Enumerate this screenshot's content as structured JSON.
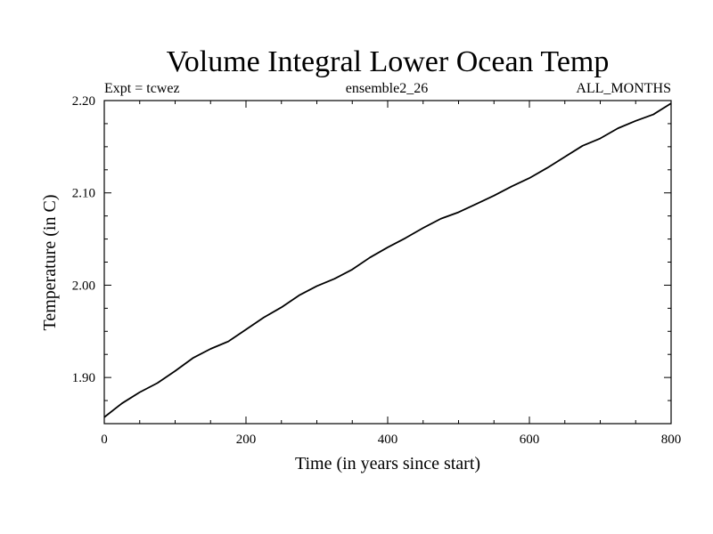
{
  "chart_data": {
    "type": "line",
    "title": "Volume Integral Lower Ocean Temp",
    "left_label": "Expt = tcwez",
    "center_label": "ensemble2_26",
    "right_label": "ALL_MONTHS",
    "xlabel": "Time (in years since start)",
    "ylabel": "Temperature (in C)",
    "xlim": [
      0,
      800
    ],
    "ylim": [
      1.85,
      2.2
    ],
    "x_ticks": [
      0,
      200,
      400,
      600,
      800
    ],
    "x_tick_labels": [
      "0",
      "200",
      "400",
      "600",
      "800"
    ],
    "y_ticks": [
      1.9,
      2.0,
      2.1,
      2.2
    ],
    "y_tick_labels": [
      "1.90",
      "2.00",
      "2.10",
      "2.20"
    ],
    "grid": false,
    "series": [
      {
        "name": "Temperature",
        "color": "#000000",
        "x": [
          0,
          25,
          50,
          75,
          100,
          125,
          150,
          175,
          200,
          225,
          250,
          275,
          300,
          325,
          350,
          375,
          400,
          425,
          450,
          475,
          500,
          525,
          550,
          575,
          600,
          625,
          650,
          675,
          700,
          725,
          750,
          775,
          800
        ],
        "values": [
          1.857,
          1.872,
          1.884,
          1.894,
          1.907,
          1.921,
          1.931,
          1.939,
          1.952,
          1.965,
          1.976,
          1.989,
          1.999,
          2.007,
          2.017,
          2.03,
          2.041,
          2.051,
          2.062,
          2.072,
          2.079,
          2.088,
          2.097,
          2.107,
          2.116,
          2.127,
          2.139,
          2.151,
          2.159,
          2.17,
          2.178,
          2.185,
          2.197
        ]
      }
    ]
  }
}
